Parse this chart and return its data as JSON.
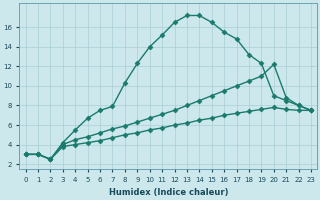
{
  "xlabel": "Humidex (Indice chaleur)",
  "background_color": "#cce8ec",
  "grid_color": "#aacdd4",
  "line_color": "#1a7a6e",
  "x_ticks": [
    0,
    1,
    2,
    3,
    4,
    5,
    6,
    7,
    8,
    9,
    10,
    11,
    12,
    13,
    14,
    15,
    16,
    17,
    18,
    19,
    20,
    21,
    22,
    23
  ],
  "ylim": [
    1.5,
    18.5
  ],
  "xlim": [
    -0.5,
    23.5
  ],
  "yticks": [
    2,
    4,
    6,
    8,
    10,
    12,
    14,
    16
  ],
  "series": [
    {
      "x": [
        0,
        1,
        2,
        3,
        4,
        5,
        6,
        7,
        8,
        9,
        10,
        11,
        12,
        13,
        14,
        15,
        16,
        17,
        18,
        19,
        20,
        21,
        22,
        23
      ],
      "y": [
        3.0,
        3.0,
        2.5,
        4.2,
        5.5,
        6.7,
        7.5,
        7.9,
        10.3,
        12.3,
        14.0,
        15.2,
        16.5,
        17.2,
        17.2,
        16.5,
        15.5,
        14.8,
        13.2,
        12.3,
        9.0,
        8.5,
        8.0,
        7.5
      ],
      "linewidth": 1.0,
      "markersize": 2.5
    },
    {
      "x": [
        0,
        1,
        2,
        3,
        4,
        5,
        6,
        7,
        8,
        9,
        10,
        11,
        12,
        13,
        14,
        15,
        16,
        17,
        18,
        19,
        20,
        21,
        22,
        23
      ],
      "y": [
        3.0,
        3.0,
        2.5,
        4.0,
        4.5,
        4.8,
        5.2,
        5.6,
        5.9,
        6.3,
        6.7,
        7.1,
        7.5,
        8.0,
        8.5,
        9.0,
        9.5,
        10.0,
        10.5,
        11.0,
        12.2,
        8.8,
        8.0,
        7.5
      ],
      "linewidth": 1.0,
      "markersize": 2.5
    },
    {
      "x": [
        0,
        1,
        2,
        3,
        4,
        5,
        6,
        7,
        8,
        9,
        10,
        11,
        12,
        13,
        14,
        15,
        16,
        17,
        18,
        19,
        20,
        21,
        22,
        23
      ],
      "y": [
        3.0,
        3.0,
        2.5,
        3.8,
        4.0,
        4.2,
        4.4,
        4.7,
        5.0,
        5.2,
        5.5,
        5.7,
        6.0,
        6.2,
        6.5,
        6.7,
        7.0,
        7.2,
        7.4,
        7.6,
        7.8,
        7.6,
        7.5,
        7.5
      ],
      "linewidth": 1.0,
      "markersize": 2.5
    }
  ]
}
